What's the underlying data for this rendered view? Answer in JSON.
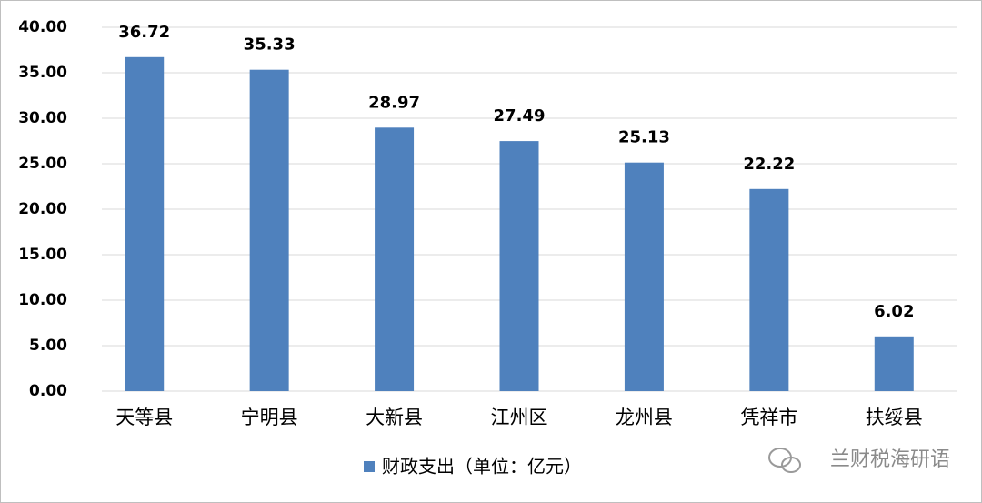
{
  "chart_data": {
    "type": "bar",
    "categories": [
      "天等县",
      "宁明县",
      "大新县",
      "江州区",
      "龙州县",
      "凭祥市",
      "扶绥县"
    ],
    "series": [
      {
        "name": "财政支出（单位：亿元）",
        "color": "#4f81bd",
        "values": [
          36.72,
          35.33,
          28.97,
          27.49,
          25.13,
          22.22,
          6.02
        ]
      }
    ],
    "ylim": [
      0,
      40
    ],
    "yticks": [
      {
        "value": 0,
        "label": "0.00"
      },
      {
        "value": 5,
        "label": "5.00"
      },
      {
        "value": 10,
        "label": "10.00"
      },
      {
        "value": 15,
        "label": "15.00"
      },
      {
        "value": 20,
        "label": "20.00"
      },
      {
        "value": 25,
        "label": "25.00"
      },
      {
        "value": 30,
        "label": "30.00"
      },
      {
        "value": 35,
        "label": "35.00"
      },
      {
        "value": 40,
        "label": "40.00"
      }
    ],
    "grid": true,
    "legend": "bottom",
    "annotation": "兰财税海研语"
  }
}
